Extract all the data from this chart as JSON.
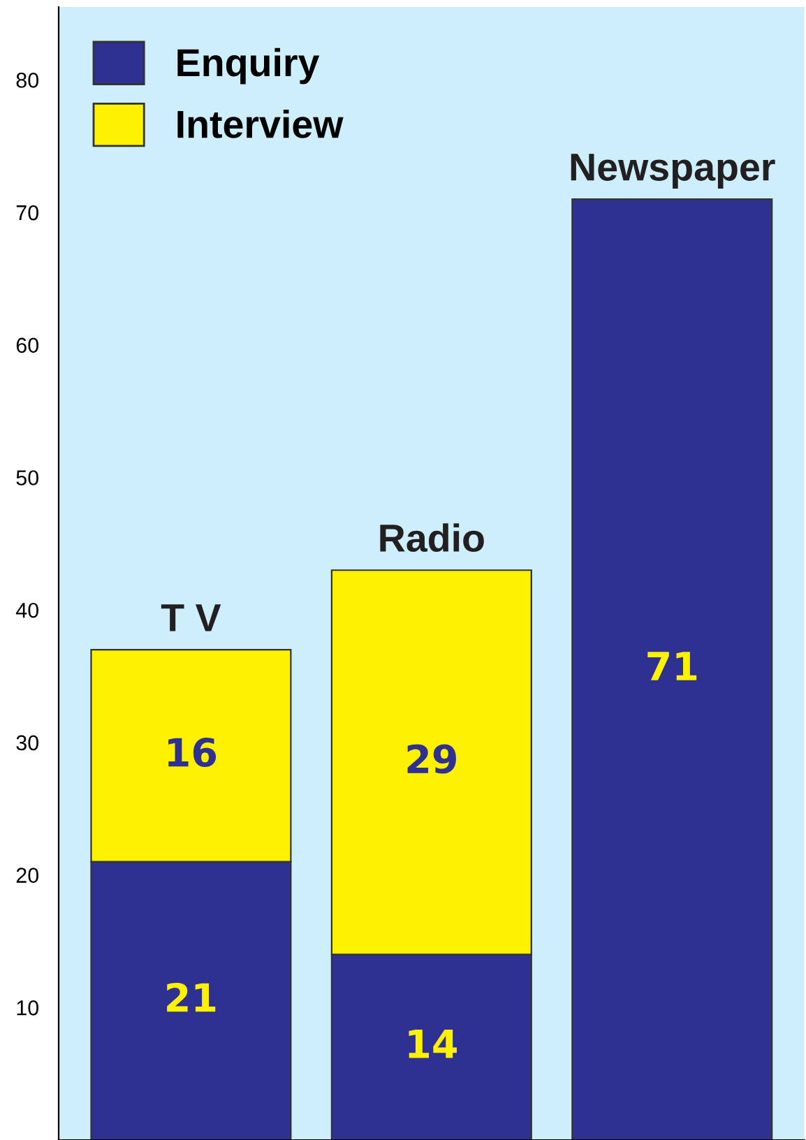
{
  "chart_data": {
    "type": "bar",
    "stacked": true,
    "categories": [
      "T V",
      "Radio",
      "Newspaper"
    ],
    "series": [
      {
        "name": "Enquiry",
        "color": "#2e3192",
        "values": [
          21,
          14,
          71
        ]
      },
      {
        "name": "Interview",
        "color": "#fff200",
        "values": [
          16,
          29,
          null
        ]
      }
    ],
    "ylim": [
      0,
      85.5
    ],
    "yticks": [
      10,
      20,
      30,
      40,
      50,
      60,
      70,
      80
    ],
    "tick_labels": "y",
    "grid": false,
    "legend": "top left",
    "data_labels": true
  }
}
